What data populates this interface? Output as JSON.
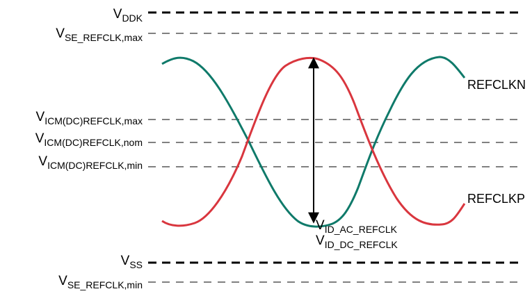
{
  "levels": {
    "vddk": {
      "main": "V",
      "sub": "DDK"
    },
    "vse_max": {
      "main": "V",
      "sub": "SE_REFCLK,max"
    },
    "vicm_max": {
      "main": "V",
      "sub": "ICM(DC)REFCLK,max"
    },
    "vicm_nom": {
      "main": "V",
      "sub": "ICM(DC)REFCLK,nom"
    },
    "vicm_min": {
      "main": "V",
      "sub": "ICM(DC)REFCLK,min"
    },
    "vss": {
      "main": "V",
      "sub": "SS"
    },
    "vse_min": {
      "main": "V",
      "sub": "SE_REFCLK,min"
    }
  },
  "signals": {
    "refclkn": {
      "label": "REFCLKN",
      "color": "#0f7a6a"
    },
    "refclkp": {
      "label": "REFCLKP",
      "color": "#d9363e"
    }
  },
  "annotations": {
    "vid_ac": {
      "main": "V",
      "sub": "ID_AC_REFCLK"
    },
    "vid_dc": {
      "main": "V",
      "sub": "ID_DC_REFCLK"
    }
  }
}
